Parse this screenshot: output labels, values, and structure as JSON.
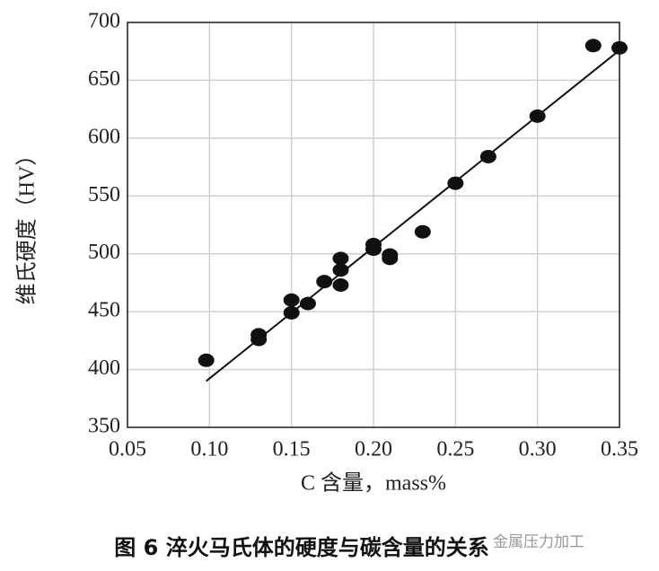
{
  "chart_data": {
    "type": "scatter",
    "title": "图 6 淬火马氏体的硬度与碳含量的关系",
    "x_label": "C 含量，mass%",
    "y_label": "维氏硬度（HV）",
    "watermark": "金属压力加工",
    "x": [
      0.098,
      0.13,
      0.13,
      0.15,
      0.15,
      0.16,
      0.17,
      0.18,
      0.18,
      0.18,
      0.2,
      0.2,
      0.21,
      0.21,
      0.23,
      0.25,
      0.27,
      0.3,
      0.334,
      0.35
    ],
    "values": [
      408,
      430,
      426,
      460,
      449,
      457,
      476,
      496,
      486,
      473,
      508,
      504,
      499,
      496,
      519,
      561,
      584,
      619,
      680,
      678
    ],
    "color": "#111111",
    "fit_line": {
      "x": [
        0.098,
        0.35
      ],
      "y": [
        390,
        676
      ],
      "color": "#111111"
    },
    "xlim": [
      0.05,
      0.35
    ],
    "xticks": [
      0.05,
      {
        "value": 0.1,
        "label": "0.10"
      },
      0.15,
      {
        "value": 0.2,
        "label": "0.20"
      },
      0.25,
      {
        "value": 0.3,
        "label": "0.30"
      },
      0.35
    ],
    "ylim": [
      350,
      700
    ],
    "yticks": [
      350,
      400,
      450,
      500,
      550,
      600,
      650,
      700
    ],
    "grid": true
  }
}
